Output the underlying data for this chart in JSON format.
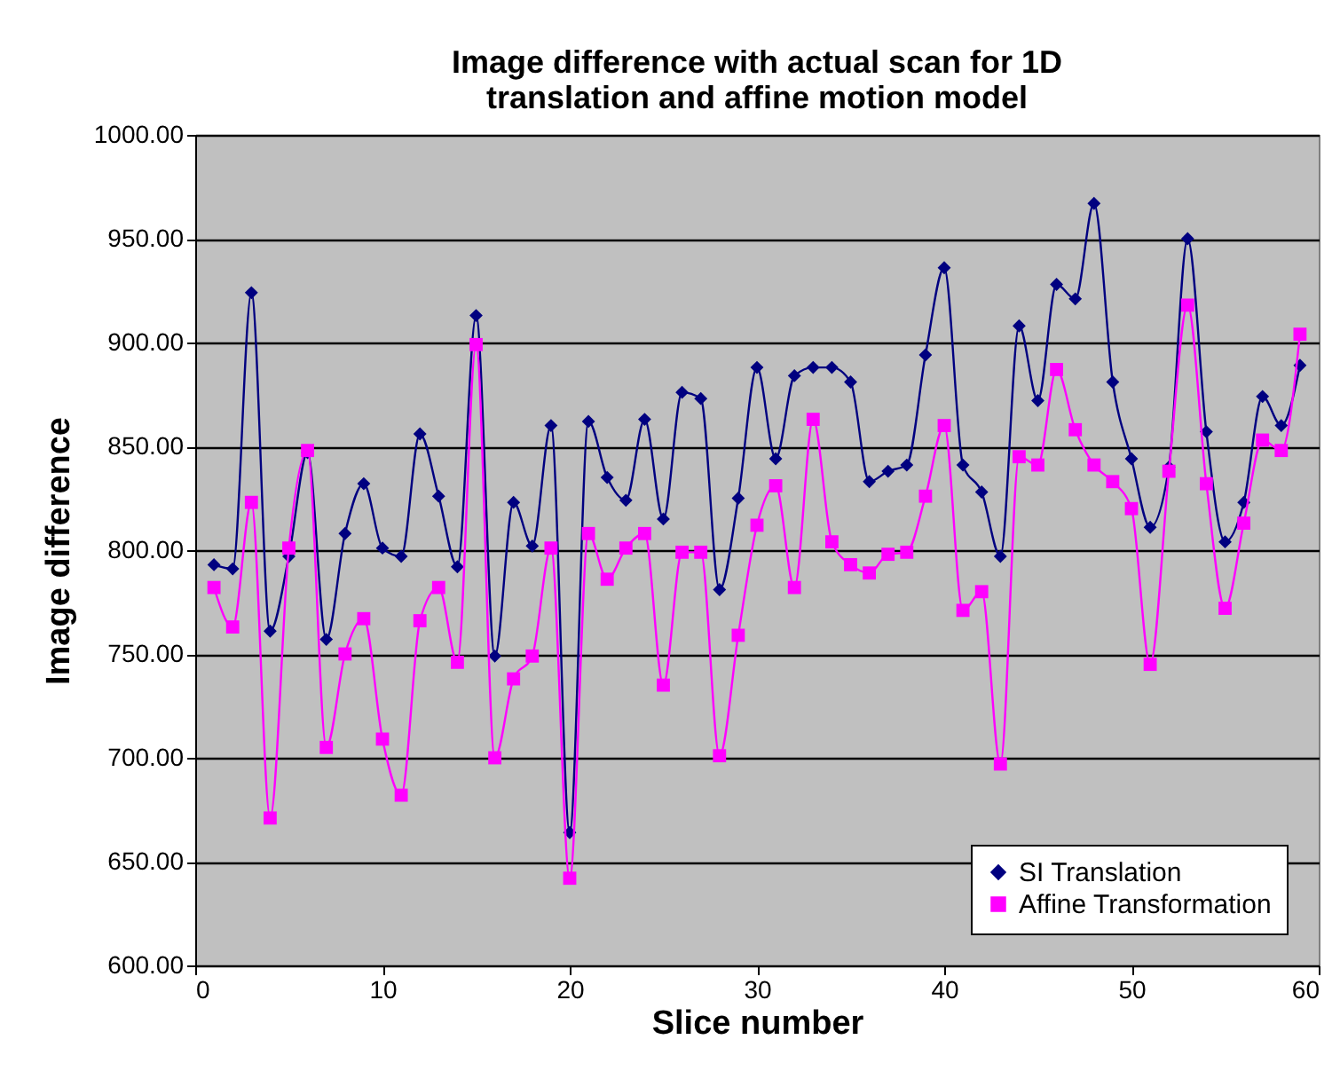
{
  "chart_data": {
    "type": "line",
    "title": "Image difference with actual scan for 1D translation and affine motion model",
    "xlabel": "Slice number",
    "ylabel": "Image difference",
    "x": [
      1,
      2,
      3,
      4,
      5,
      6,
      7,
      8,
      9,
      10,
      11,
      12,
      13,
      14,
      15,
      16,
      17,
      18,
      19,
      20,
      21,
      22,
      23,
      24,
      25,
      26,
      27,
      28,
      29,
      30,
      31,
      32,
      33,
      34,
      35,
      36,
      37,
      38,
      39,
      40,
      41,
      42,
      43,
      44,
      45,
      46,
      47,
      48,
      49,
      50,
      51,
      52,
      53,
      54,
      55,
      56,
      57,
      58,
      59
    ],
    "series": [
      {
        "name": "SI Translation",
        "color": "#000080",
        "marker": "diamond",
        "values": [
          793,
          791,
          924,
          761,
          797,
          847,
          757,
          808,
          832,
          801,
          797,
          856,
          826,
          792,
          913,
          749,
          823,
          802,
          860,
          664,
          862,
          835,
          824,
          863,
          815,
          876,
          873,
          781,
          825,
          888,
          844,
          884,
          888,
          888,
          881,
          833,
          838,
          841,
          894,
          936,
          841,
          828,
          797,
          908,
          872,
          928,
          921,
          967,
          881,
          844,
          811,
          840,
          950,
          857,
          804,
          823,
          874,
          860,
          889
        ]
      },
      {
        "name": "Affine Transformation",
        "color": "#ff00ff",
        "marker": "square",
        "values": [
          782,
          763,
          823,
          671,
          801,
          848,
          705,
          750,
          767,
          709,
          682,
          766,
          782,
          746,
          899,
          700,
          738,
          749,
          801,
          642,
          808,
          786,
          801,
          808,
          735,
          799,
          799,
          701,
          759,
          812,
          831,
          782,
          863,
          804,
          793,
          789,
          798,
          799,
          826,
          860,
          771,
          780,
          697,
          845,
          841,
          887,
          858,
          841,
          833,
          820,
          745,
          838,
          918,
          832,
          772,
          813,
          853,
          848,
          904
        ]
      }
    ],
    "xlim": [
      0,
      60
    ],
    "xticks": [
      0,
      10,
      20,
      30,
      40,
      50,
      60
    ],
    "ylim": [
      600,
      1000
    ],
    "yticks": [
      {
        "value": 600,
        "label": "600.00"
      },
      {
        "value": 650,
        "label": "650.00"
      },
      {
        "value": 700,
        "label": "700.00"
      },
      {
        "value": 750,
        "label": "750.00"
      },
      {
        "value": 800,
        "label": "800.00"
      },
      {
        "value": 850,
        "label": "850.00"
      },
      {
        "value": 900,
        "label": "900.00"
      },
      {
        "value": 950,
        "label": "950.00"
      },
      {
        "value": 1000,
        "label": "1000.00"
      }
    ],
    "grid": "y",
    "legend": "bottom right"
  }
}
